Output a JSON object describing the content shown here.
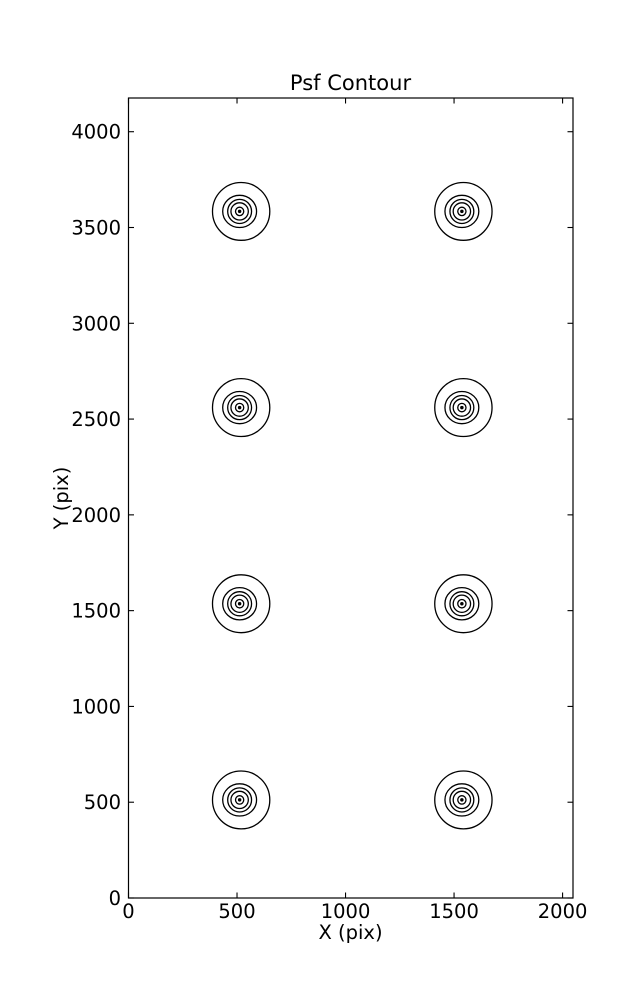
{
  "figure": {
    "background_color": "#ffffff",
    "line_color": "#000000"
  },
  "chart_data": {
    "type": "contour",
    "title": "Psf Contour",
    "xlabel": "X (pix)",
    "ylabel": "Y (pix)",
    "xlim": [
      0,
      2048
    ],
    "ylim": [
      0,
      4176
    ],
    "xticks": [
      0,
      500,
      1000,
      1500,
      2000
    ],
    "yticks": [
      0,
      500,
      1000,
      1500,
      2000,
      2500,
      3000,
      3500,
      4000
    ],
    "grid": false,
    "legend": null,
    "tick_direction": "in",
    "frame": "box",
    "psf_centers": [
      {
        "x": 512,
        "y": 512
      },
      {
        "x": 1536,
        "y": 512
      },
      {
        "x": 512,
        "y": 1536
      },
      {
        "x": 1536,
        "y": 1536
      },
      {
        "x": 512,
        "y": 2560
      },
      {
        "x": 1536,
        "y": 2560
      },
      {
        "x": 512,
        "y": 3584
      },
      {
        "x": 1536,
        "y": 3584
      }
    ],
    "contour_rings_data_radii": [
      {
        "rx": 132,
        "ry": 151,
        "dx": 7,
        "dy": 0
      },
      {
        "rx": 78,
        "ry": 84,
        "dx": 0,
        "dy": 0
      },
      {
        "rx": 55,
        "ry": 63,
        "dx": 0,
        "dy": 0
      },
      {
        "rx": 40,
        "ry": 45,
        "dx": 0,
        "dy": 0
      },
      {
        "rx": 19,
        "ry": 22,
        "dx": 0,
        "dy": 0
      }
    ],
    "center_dot_data_radius": 8
  }
}
